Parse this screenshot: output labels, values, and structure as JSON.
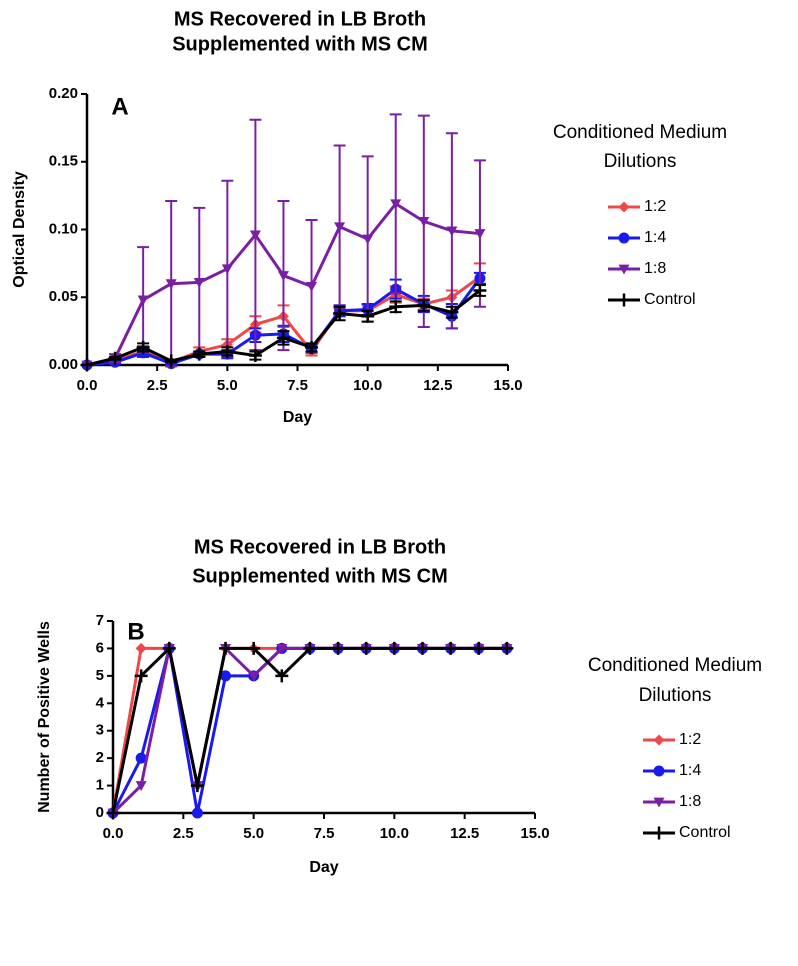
{
  "chart_data": [
    {
      "type": "line",
      "title": [
        "MS Recovered in LB Broth",
        "Supplemented with MS CM"
      ],
      "annotation": "A",
      "x_label": "Day",
      "y_label": "Optical Density",
      "legend_title": [
        "Conditioned Medium",
        "Dilutions"
      ],
      "x": [
        0,
        1,
        2,
        3,
        4,
        5,
        6,
        7,
        8,
        9,
        10,
        11,
        12,
        13,
        14
      ],
      "xlim": [
        0,
        15
      ],
      "xticks": [
        {
          "value": 0,
          "label": "0.0"
        },
        {
          "value": 2.5,
          "label": "2.5"
        },
        {
          "value": 5,
          "label": "5.0"
        },
        {
          "value": 7.5,
          "label": "7.5"
        },
        {
          "value": 10,
          "label": "10.0"
        },
        {
          "value": 12.5,
          "label": "12.5"
        },
        {
          "value": 15,
          "label": "15.0"
        }
      ],
      "ylim": [
        0,
        0.2
      ],
      "yticks": [
        {
          "value": 0,
          "label": "0.00"
        },
        {
          "value": 0.05,
          "label": "0.05"
        },
        {
          "value": 0.1,
          "label": "0.10"
        },
        {
          "value": 0.15,
          "label": "0.15"
        },
        {
          "value": 0.2,
          "label": "0.20"
        }
      ],
      "series": [
        {
          "name": "1:2",
          "color": "#f04848",
          "marker": "diamond",
          "values": [
            0,
            0.003,
            0.01,
            0.002,
            0.01,
            0.015,
            0.03,
            0.036,
            0.01,
            0.04,
            0.04,
            0.052,
            0.045,
            0.05,
            0.065
          ],
          "errors": [
            0,
            0.002,
            0.004,
            0.001,
            0.003,
            0.004,
            0.006,
            0.008,
            0.003,
            0.004,
            0.004,
            0.006,
            0.004,
            0.005,
            0.01
          ]
        },
        {
          "name": "1:4",
          "color": "#1a1aee",
          "marker": "circle",
          "values": [
            0,
            0.002,
            0.009,
            0.001,
            0.008,
            0.008,
            0.022,
            0.023,
            0.012,
            0.04,
            0.041,
            0.056,
            0.045,
            0.036,
            0.064
          ],
          "errors": [
            0,
            0.001,
            0.003,
            0.001,
            0.002,
            0.003,
            0.005,
            0.006,
            0.003,
            0.004,
            0.004,
            0.007,
            0.006,
            0.009,
            0.004
          ]
        },
        {
          "name": "1:8",
          "color": "#7b1fa2",
          "marker": "triangle-down",
          "values": [
            0,
            0.005,
            0.048,
            0.06,
            0.061,
            0.071,
            0.096,
            0.066,
            0.058,
            0.102,
            0.093,
            0.119,
            0.106,
            0.099,
            0.097
          ],
          "errors": [
            0,
            0.003,
            0.039,
            0.061,
            0.055,
            0.065,
            0.085,
            0.055,
            0.049,
            0.06,
            0.061,
            0.066,
            0.078,
            0.072,
            0.054
          ]
        },
        {
          "name": "Control",
          "color": "#000000",
          "marker": "plus",
          "values": [
            0,
            0.005,
            0.013,
            0.003,
            0.008,
            0.01,
            0.007,
            0.02,
            0.013,
            0.038,
            0.036,
            0.043,
            0.044,
            0.039,
            0.055
          ],
          "errors": [
            0,
            0.001,
            0.003,
            0.001,
            0.002,
            0.003,
            0.003,
            0.005,
            0.003,
            0.005,
            0.004,
            0.004,
            0.004,
            0.004,
            0.004
          ]
        }
      ]
    },
    {
      "type": "line",
      "title": [
        "MS Recovered in LB Broth",
        "Supplemented with MS CM"
      ],
      "annotation": "B",
      "x_label": "Day",
      "y_label": "Number of Positive Wells",
      "legend_title": [
        "Conditioned Medium",
        "Dilutions"
      ],
      "x": [
        0,
        1,
        2,
        3,
        4,
        5,
        6,
        7,
        8,
        9,
        10,
        11,
        12,
        13,
        14
      ],
      "xlim": [
        0,
        15
      ],
      "xticks": [
        {
          "value": 0,
          "label": "0.0"
        },
        {
          "value": 2.5,
          "label": "2.5"
        },
        {
          "value": 5,
          "label": "5.0"
        },
        {
          "value": 7.5,
          "label": "7.5"
        },
        {
          "value": 10,
          "label": "10.0"
        },
        {
          "value": 12.5,
          "label": "12.5"
        },
        {
          "value": 15,
          "label": "15.0"
        }
      ],
      "ylim": [
        0,
        7
      ],
      "yticks": [
        0,
        1,
        2,
        3,
        4,
        5,
        6,
        7
      ],
      "series": [
        {
          "name": "1:2",
          "color": "#f04848",
          "marker": "diamond",
          "values": [
            0,
            6,
            6,
            1,
            6,
            6,
            6,
            6,
            6,
            6,
            6,
            6,
            6,
            6,
            6
          ]
        },
        {
          "name": "1:4",
          "color": "#1a1aee",
          "marker": "circle",
          "values": [
            0,
            2,
            6,
            0,
            5,
            5,
            6,
            6,
            6,
            6,
            6,
            6,
            6,
            6,
            6
          ]
        },
        {
          "name": "1:8",
          "color": "#7b1fa2",
          "marker": "triangle-down",
          "values": [
            0,
            1,
            6,
            1,
            6,
            5,
            6,
            6,
            6,
            6,
            6,
            6,
            6,
            6,
            6
          ]
        },
        {
          "name": "Control",
          "color": "#000000",
          "marker": "plus",
          "values": [
            0,
            5,
            6,
            1,
            6,
            6,
            5,
            6,
            6,
            6,
            6,
            6,
            6,
            6,
            6
          ]
        }
      ]
    }
  ]
}
